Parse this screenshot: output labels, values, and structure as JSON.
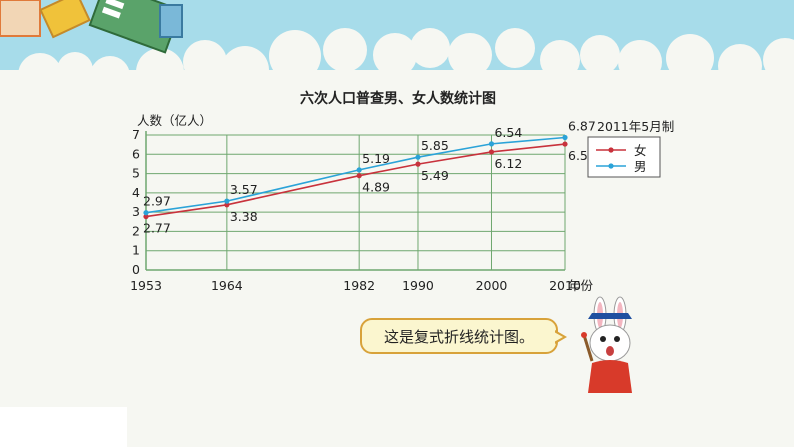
{
  "chart_data": {
    "type": "line",
    "title": "六次人口普查男、女人数统计图",
    "ylabel": "人数（亿人）",
    "xlabel": "年份",
    "note": "2011年5月制",
    "categories": [
      "1953",
      "1964",
      "1982",
      "1990",
      "2000",
      "2010"
    ],
    "x": [
      1953,
      1964,
      1982,
      1990,
      2000,
      2010
    ],
    "yticks": [
      "0",
      "1",
      "2",
      "3",
      "4",
      "5",
      "6",
      "7"
    ],
    "ylim": [
      0,
      7
    ],
    "grid": true,
    "legend_position": "right",
    "series": [
      {
        "name": "女",
        "color": "#c8323c",
        "values": [
          2.77,
          3.38,
          4.89,
          5.49,
          6.12,
          6.53
        ],
        "labels": [
          "2.77",
          "3.38",
          "4.89",
          "5.49",
          "6.12",
          "6.53"
        ]
      },
      {
        "name": "男",
        "color": "#2ba3d8",
        "values": [
          2.97,
          3.57,
          5.19,
          5.85,
          6.54,
          6.87
        ],
        "labels": [
          "2.97",
          "3.57",
          "5.19",
          "5.85",
          "6.54",
          "6.87"
        ]
      }
    ]
  },
  "bubble_text": "这是复式折线统计图。",
  "colors": {
    "grid": "#6fa76f",
    "banner_sky": "#a7dcea",
    "bubble_border": "#d8a23a",
    "bubble_fill": "#fbf6cf"
  }
}
